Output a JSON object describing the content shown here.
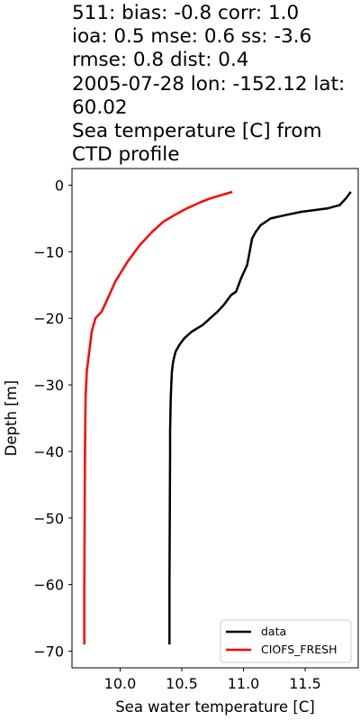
{
  "chart_data": {
    "type": "line",
    "title_lines": [
      "511: bias: -0.8  corr: 1.0",
      "ioa: 0.5  mse: 0.6  ss: -3.6",
      "rmse: 0.8  dist: 0.4",
      "2005-07-28 lon: -152.12 lat:",
      "60.02",
      "Sea temperature [C] from",
      "CTD profile"
    ],
    "xlabel": "Sea water temperature [C]",
    "ylabel": "Depth [m]",
    "xlim": [
      9.61,
      11.93
    ],
    "ylim": [
      -72.5,
      2.5
    ],
    "xticks": [
      10.0,
      10.5,
      11.0,
      11.5
    ],
    "xtick_labels": [
      "10.0",
      "10.5",
      "11.0",
      "11.5"
    ],
    "yticks": [
      0,
      -10,
      -20,
      -30,
      -40,
      -50,
      -60,
      -70
    ],
    "ytick_labels": [
      "0",
      "−10",
      "−20",
      "−30",
      "−40",
      "−50",
      "−60",
      "−70"
    ],
    "legend_position": "lower right",
    "series": [
      {
        "name": "data",
        "color": "#000000",
        "x": [
          11.87,
          11.83,
          11.78,
          11.68,
          11.47,
          11.34,
          11.22,
          11.14,
          11.1,
          11.07,
          11.05,
          11.03,
          10.98,
          10.94,
          10.9,
          10.88,
          10.84,
          10.79,
          10.73,
          10.67,
          10.58,
          10.52,
          10.48,
          10.45,
          10.43,
          10.42,
          10.415,
          10.41,
          10.405,
          10.405,
          10.4,
          10.4
        ],
        "y": [
          -1,
          -2,
          -3,
          -3.5,
          -4,
          -4.5,
          -5,
          -6,
          -7,
          -8,
          -10,
          -12,
          -14,
          -16,
          -16.5,
          -17,
          -18,
          -19,
          -20,
          -21,
          -22,
          -23,
          -24,
          -25,
          -26.5,
          -28,
          -30,
          -32,
          -37,
          -40,
          -60,
          -69
        ]
      },
      {
        "name": "CIOFS_FRESH",
        "color": "#ff0000",
        "x": [
          10.91,
          10.82,
          10.73,
          10.66,
          10.6,
          10.54,
          10.49,
          10.44,
          10.35,
          10.26,
          10.16,
          10.06,
          9.96,
          9.9,
          9.85,
          9.8,
          9.77,
          9.75,
          9.73,
          9.72,
          9.715,
          9.71,
          9.71
        ],
        "y": [
          -1,
          -1.5,
          -2,
          -2.5,
          -3,
          -3.5,
          -4,
          -4.5,
          -5.5,
          -7,
          -9,
          -11.5,
          -14.5,
          -17,
          -19,
          -20,
          -22,
          -25,
          -28,
          -32,
          -40,
          -60,
          -69
        ]
      }
    ]
  }
}
